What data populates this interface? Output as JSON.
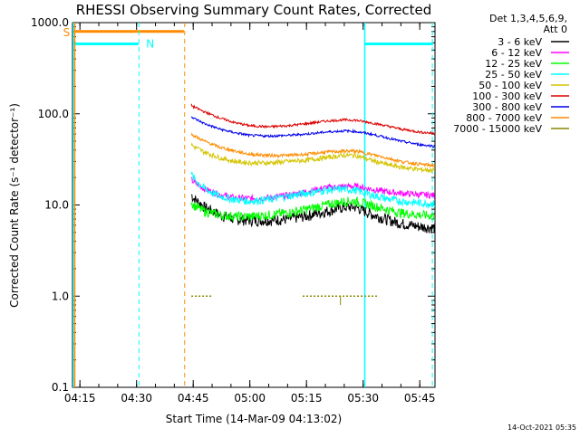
{
  "chart_data": {
    "type": "line",
    "title": "RHESSI Observing Summary Count Rates, Corrected",
    "xlabel": "Start Time (14-Mar-09 04:13:02)",
    "ylabel": "Corrected Count Rate (s⁻¹ detector⁻¹)",
    "yscale": "log",
    "ylim": [
      0.1,
      1000
    ],
    "xlim_minutes": [
      0,
      96
    ],
    "x_ticks": [
      "04:15",
      "04:30",
      "04:45",
      "05:00",
      "05:15",
      "05:30",
      "05:45"
    ],
    "y_ticks": [
      "0.1",
      "1.0",
      "10.0",
      "100.0",
      "1000.0"
    ],
    "legend_header": [
      "Det 1,3,4,5,6,9,",
      "Att 0"
    ],
    "legend_placement": "top-right outside",
    "series": [
      {
        "name": "3 - 6 keV",
        "color": "#000000",
        "x": [
          "04:44:30",
          "04:45",
          "04:48",
          "04:52",
          "04:56",
          "05:00",
          "05:05",
          "05:10",
          "05:15",
          "05:20",
          "05:25",
          "05:28",
          "05:32",
          "05:36",
          "05:40",
          "05:45",
          "05:49"
        ],
        "values": [
          13,
          12,
          9.5,
          7.8,
          7.0,
          6.8,
          6.8,
          7.0,
          7.6,
          8.5,
          9.5,
          9.5,
          8.0,
          7.0,
          6.3,
          5.8,
          5.6
        ]
      },
      {
        "name": "6 - 12 keV",
        "color": "#ff00ff",
        "x": [
          "04:44:30",
          "04:45",
          "04:48",
          "04:52",
          "04:56",
          "05:00",
          "05:05",
          "05:10",
          "05:15",
          "05:20",
          "05:25",
          "05:28",
          "05:32",
          "05:36",
          "05:40",
          "05:45",
          "05:49"
        ],
        "values": [
          19,
          18,
          15,
          13,
          12,
          11.8,
          12,
          12.8,
          14,
          15.5,
          16,
          16,
          15,
          14,
          13.5,
          13,
          12.8
        ]
      },
      {
        "name": "12 - 25 keV",
        "color": "#00ff00",
        "x": [
          "04:44:30",
          "04:45",
          "04:48",
          "04:52",
          "04:56",
          "05:00",
          "05:05",
          "05:10",
          "05:15",
          "05:20",
          "05:25",
          "05:28",
          "05:32",
          "05:36",
          "05:40",
          "05:45",
          "05:49"
        ],
        "values": [
          11,
          10,
          8.5,
          7.8,
          7.5,
          7.5,
          7.8,
          8.2,
          9.0,
          10,
          11,
          11,
          10,
          9.0,
          8.2,
          7.8,
          7.6
        ]
      },
      {
        "name": "25 - 50 keV",
        "color": "#00ffff",
        "x": [
          "04:44:30",
          "04:45",
          "04:48",
          "04:52",
          "04:56",
          "05:00",
          "05:05",
          "05:10",
          "05:15",
          "05:20",
          "05:25",
          "05:28",
          "05:32",
          "05:36",
          "05:40",
          "05:45",
          "05:49"
        ],
        "values": [
          22,
          20,
          15,
          12.5,
          11.5,
          11,
          11.5,
          12.5,
          13.5,
          14.5,
          15,
          14.5,
          13,
          11.8,
          11,
          10.5,
          10.3
        ]
      },
      {
        "name": "50 - 100 keV",
        "color": "#d4c400",
        "x": [
          "04:44:30",
          "04:45",
          "04:48",
          "04:52",
          "04:56",
          "05:00",
          "05:05",
          "05:10",
          "05:15",
          "05:20",
          "05:25",
          "05:28",
          "05:32",
          "05:36",
          "05:40",
          "05:45",
          "05:49"
        ],
        "values": [
          46,
          44,
          38,
          33,
          30,
          29,
          29,
          30,
          31,
          33,
          35,
          35,
          31,
          28,
          26,
          24.5,
          24
        ]
      },
      {
        "name": "100 - 300 keV",
        "color": "#dd0000",
        "x": [
          "04:44:30",
          "04:45",
          "04:48",
          "04:52",
          "04:56",
          "05:00",
          "05:05",
          "05:10",
          "05:15",
          "05:20",
          "05:25",
          "05:28",
          "05:32",
          "05:36",
          "05:40",
          "05:45",
          "05:49"
        ],
        "values": [
          125,
          120,
          105,
          90,
          80,
          74,
          72,
          74,
          78,
          83,
          86,
          85,
          80,
          74,
          68,
          63,
          61
        ]
      },
      {
        "name": "300 - 800 keV",
        "color": "#0000ee",
        "x": [
          "04:44:30",
          "04:45",
          "04:48",
          "04:52",
          "04:56",
          "05:00",
          "05:05",
          "05:10",
          "05:15",
          "05:20",
          "05:25",
          "05:28",
          "05:32",
          "05:36",
          "05:40",
          "05:45",
          "05:49"
        ],
        "values": [
          95,
          90,
          78,
          68,
          62,
          58,
          57,
          58,
          60,
          63,
          65,
          64,
          60,
          55,
          50,
          46,
          44
        ]
      },
      {
        "name": "800 - 7000 keV",
        "color": "#ff8c00",
        "x": [
          "04:44:30",
          "04:45",
          "04:48",
          "04:52",
          "04:56",
          "05:00",
          "05:05",
          "05:10",
          "05:15",
          "05:20",
          "05:25",
          "05:28",
          "05:32",
          "05:36",
          "05:40",
          "05:45",
          "05:49"
        ],
        "values": [
          60,
          58,
          50,
          43,
          39,
          36,
          35,
          35,
          36,
          38,
          39,
          39,
          36,
          33,
          30,
          28,
          27
        ]
      },
      {
        "name": "7000 - 15000 keV",
        "color": "#888800",
        "x": [
          "04:44:30",
          "04:50",
          "05:14",
          "05:20",
          "05:25",
          "05:30",
          "05:34"
        ],
        "values": [
          1.0,
          1.0,
          1.0,
          1.0,
          1.0,
          1.0,
          1.0
        ]
      }
    ],
    "flag_labels": [
      "S",
      "N"
    ],
    "footer_date": "14-Oct-2021 05:35"
  }
}
